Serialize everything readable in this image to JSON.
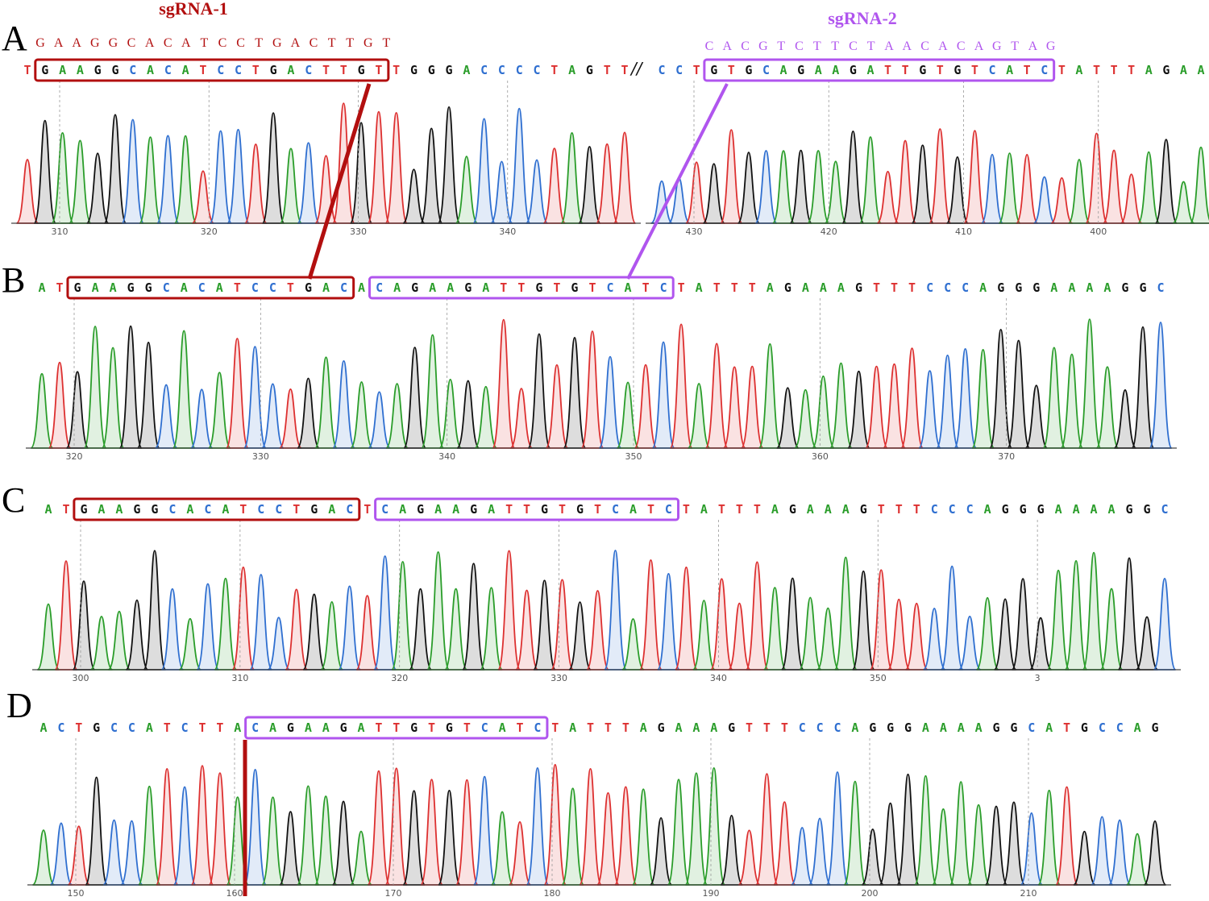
{
  "colors": {
    "A": "#2a9d2a",
    "C": "#2f6fd0",
    "G": "#111111",
    "T": "#dd3030",
    "sg1": "#b20f0f",
    "sg2": "#b055ee"
  },
  "panels": [
    {
      "label": "A"
    },
    {
      "label": "B"
    },
    {
      "label": "C"
    },
    {
      "label": "D"
    }
  ],
  "sgRNA1": {
    "title": "sgRNA-1",
    "seq": "GAAGGCACATCCTGACTTGT"
  },
  "sgRNA2": {
    "title": "sgRNA-2",
    "seq": "CACGTCTTCTAACACAGTAG"
  },
  "break_mark": "//",
  "tracks": {
    "A1": {
      "seq": "TGAAGGCACATCCTGACTTGTTGGGACCCCTAGTT",
      "ticks": [
        "310",
        "320",
        "330",
        "340"
      ]
    },
    "A2": {
      "seq": "CCTGTGCAGAAGATTGTGTCATCTATTTAGAA",
      "ticks": [
        "430",
        "420",
        "410",
        "400"
      ]
    },
    "B": {
      "seq": "ATGAAGGCACATCCTGACACAGAAGATTGTGTCATCTATTTAGAAAGTTTCCCAGGGAAAAGGC",
      "ticks": [
        "320",
        "330",
        "340",
        "350",
        "360",
        "370"
      ]
    },
    "C": {
      "seq": "ATGAAGGCACATCCTGACTCAGAAGATTGTGTCATCTATTTAGAAAGTTTCCCAGGGAAAAGGC",
      "ticks": [
        "300",
        "310",
        "320",
        "330",
        "340",
        "350",
        "3"
      ]
    },
    "D": {
      "seq": "ACTGCCATCTTACAGAAGATTGTGTCATCTATTTAGAAAGTTTCCCAGGGAAAAGGCATGCCAG",
      "ticks": [
        "150",
        "160",
        "170",
        "180",
        "190",
        "200",
        "210"
      ]
    }
  }
}
